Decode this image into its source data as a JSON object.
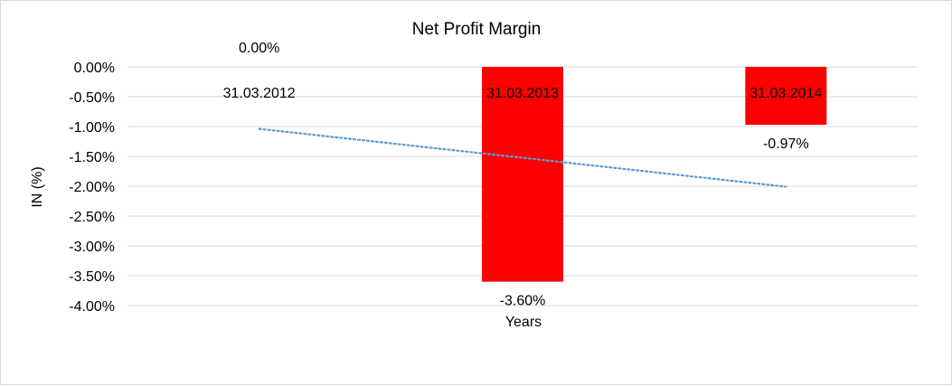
{
  "chart_data": {
    "type": "bar",
    "title": "Net Profit Margin",
    "xlabel": "Years",
    "ylabel": "IN (%)",
    "categories": [
      "31.03.2012",
      "31.03.2013",
      "31.03.2014"
    ],
    "series": [
      {
        "values": [
          0.0,
          -3.6,
          -0.97
        ],
        "color": "#ff0000"
      }
    ],
    "data_labels": [
      "0.00%",
      "-3.60%",
      "-0.97%"
    ],
    "ylim": [
      -4.0,
      0.0
    ],
    "yticks": [
      0.0,
      -0.5,
      -1.0,
      -1.5,
      -2.0,
      -2.5,
      -3.0,
      -3.5,
      -4.0
    ],
    "ytick_labels": [
      "0.00%",
      "-0.50%",
      "-1.00%",
      "-1.50%",
      "-2.00%",
      "-2.50%",
      "-3.00%",
      "-3.50%",
      "-4.00%"
    ],
    "trendline": {
      "type": "linear",
      "color": "#5b9bd5",
      "style": "dotted"
    },
    "grid": true,
    "legend": "none"
  }
}
